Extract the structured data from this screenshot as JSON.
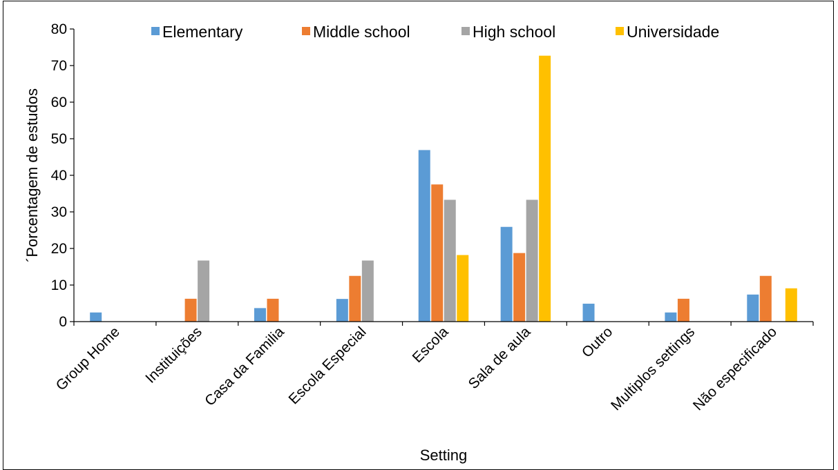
{
  "chart_data": {
    "type": "bar",
    "title": "",
    "xlabel": "Setting",
    "ylabel": "´Porcentagem de estudos",
    "ylim": [
      0,
      80
    ],
    "yticks": [
      0,
      10,
      20,
      30,
      40,
      50,
      60,
      70,
      80
    ],
    "grid": false,
    "legend_position": "top",
    "categories": [
      "Group Home",
      "Instituições",
      "Casa da Familia",
      "Escola Especial",
      "Escola",
      "Sala de aula",
      "Outro",
      "Multiplos settings",
      "Não especificado"
    ],
    "series": [
      {
        "name": "Elementary",
        "color": "#5b9bd5",
        "values": [
          2.5,
          0,
          3.7,
          6.2,
          46.9,
          25.9,
          4.9,
          2.5,
          7.4
        ]
      },
      {
        "name": "Middle school",
        "color": "#ed7d31",
        "values": [
          0,
          6.25,
          6.25,
          12.5,
          37.5,
          18.75,
          0,
          6.25,
          12.5
        ]
      },
      {
        "name": "High school",
        "color": "#a5a5a5",
        "values": [
          0,
          16.7,
          0,
          16.7,
          33.3,
          33.3,
          0,
          0,
          0
        ]
      },
      {
        "name": "Universidade",
        "color": "#ffc000",
        "values": [
          0,
          0,
          0,
          0,
          18.2,
          72.7,
          0,
          0,
          9.1
        ]
      }
    ]
  }
}
